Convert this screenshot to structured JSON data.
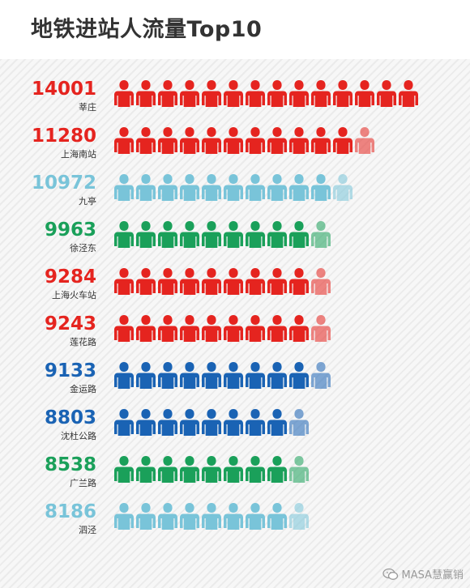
{
  "title": "地铁进站人流量Top10",
  "watermark": "MASA慧赢销",
  "colors": {
    "red": "#e5241f",
    "lightblue": "#79c4d9",
    "green": "#1aa05a",
    "blue": "#1a63b4"
  },
  "chart_data": {
    "type": "pictograph",
    "title": "地铁进站人流量Top10",
    "unit_per_icon": 1000,
    "rows": [
      {
        "station": "莘庄",
        "value": 14001,
        "color": "red"
      },
      {
        "station": "上海南站",
        "value": 11280,
        "color": "red"
      },
      {
        "station": "九亭",
        "value": 10972,
        "color": "lightblue"
      },
      {
        "station": "徐泾东",
        "value": 9963,
        "color": "green"
      },
      {
        "station": "上海火车站",
        "value": 9284,
        "color": "red"
      },
      {
        "station": "莲花路",
        "value": 9243,
        "color": "red"
      },
      {
        "station": "金运路",
        "value": 9133,
        "color": "blue"
      },
      {
        "station": "沈杜公路",
        "value": 8803,
        "color": "blue"
      },
      {
        "station": "广兰路",
        "value": 8538,
        "color": "green"
      },
      {
        "station": "泗泾",
        "value": 8186,
        "color": "lightblue"
      }
    ]
  }
}
